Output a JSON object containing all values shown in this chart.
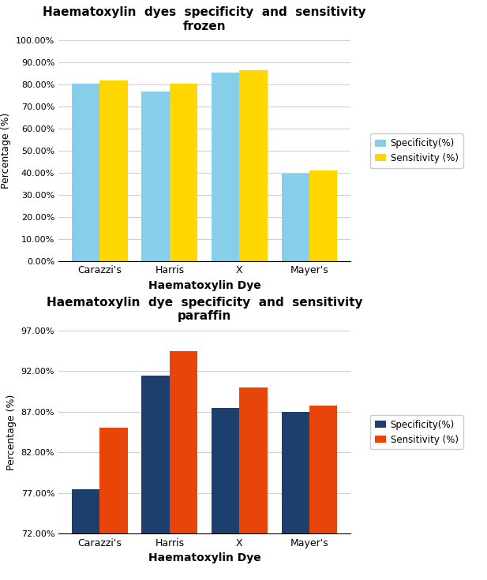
{
  "chart1": {
    "title": "Haematoxylin  dyes  specificity  and  sensitivity\nfrozen",
    "categories": [
      "Carazzi's",
      "Harris",
      "X",
      "Mayer's"
    ],
    "specificity": [
      80.5,
      77.0,
      85.5,
      39.5
    ],
    "sensitivity": [
      82.0,
      80.5,
      86.5,
      41.0
    ],
    "spec_color": "#87CEEB",
    "sens_color": "#FFD700",
    "ylabel": "Percentage (%)",
    "xlabel": "Haematoxylin Dye",
    "ylim": [
      0,
      100
    ],
    "yticks": [
      0,
      10,
      20,
      30,
      40,
      50,
      60,
      70,
      80,
      90,
      100
    ],
    "ytick_labels": [
      "0.00%",
      "10.00%",
      "20.00%",
      "30.00%",
      "40.00%",
      "50.00%",
      "60.00%",
      "70.00%",
      "80.00%",
      "90.00%",
      "100.00%"
    ],
    "legend_labels": [
      "Specificity(%)",
      "Sensitivity (%)"
    ]
  },
  "chart2": {
    "title": "Haematoxylin  dye  specificity  and  sensitivity\nparaffin",
    "categories": [
      "Carazzi's",
      "Harris",
      "X",
      "Mayer's"
    ],
    "specificity": [
      77.5,
      91.5,
      87.5,
      87.0
    ],
    "sensitivity": [
      85.0,
      94.5,
      90.0,
      87.8
    ],
    "spec_color": "#1C3F6E",
    "sens_color": "#E8450A",
    "ylabel": "Percentage (%)",
    "xlabel": "Haematoxylin Dye",
    "ylim": [
      72,
      97
    ],
    "yticks": [
      72,
      77,
      82,
      87,
      92,
      97
    ],
    "ytick_labels": [
      "72.00%",
      "77.00%",
      "82.00%",
      "87.00%",
      "92.00%",
      "97.00%"
    ],
    "legend_labels": [
      "Specificity(%)",
      "Sensitivity (%)"
    ]
  }
}
